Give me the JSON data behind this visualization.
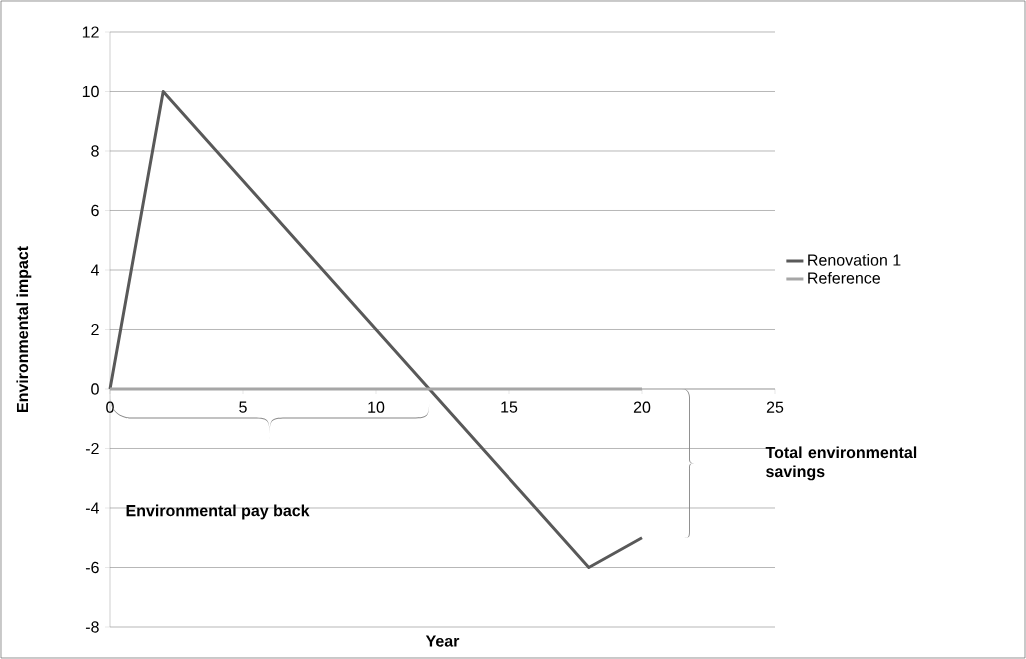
{
  "chart_data": {
    "type": "line",
    "xlabel": "Year",
    "ylabel": "Environmental impact",
    "series": [
      {
        "name": "Renovation 1",
        "color": "#595959",
        "x": [
          0,
          2,
          18,
          20
        ],
        "values": [
          0,
          10,
          -6,
          -5
        ]
      },
      {
        "name": "Reference",
        "color": "#a6a6a6",
        "x": [
          0,
          20
        ],
        "values": [
          0,
          0
        ]
      }
    ],
    "xlim": [
      0,
      25
    ],
    "xticks": [
      0,
      5,
      10,
      15,
      20,
      25
    ],
    "ylim": [
      -8,
      12
    ],
    "yticks": [
      -8,
      -6,
      -4,
      -2,
      0,
      2,
      4,
      6,
      8,
      10,
      12
    ],
    "grid": "y",
    "legend": "right",
    "marker": "none",
    "line_style": "solid",
    "annotations": [
      "Environmental pay back",
      "Total environmental savings"
    ]
  }
}
